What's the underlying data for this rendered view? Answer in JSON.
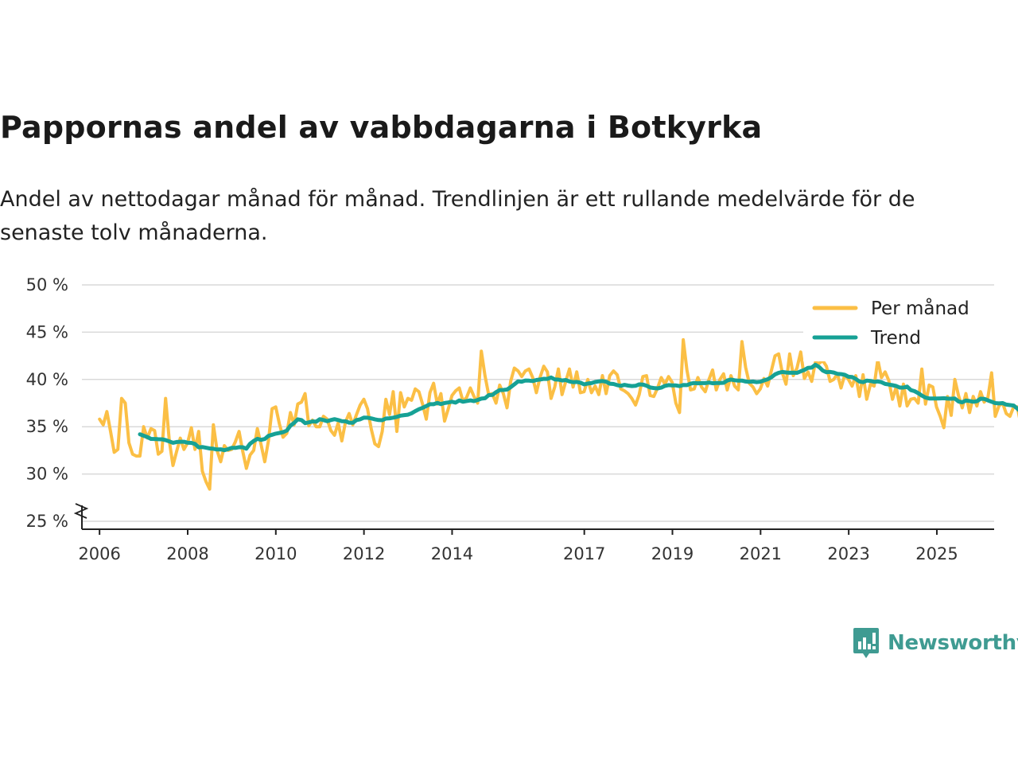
{
  "title": "Pappornas andel av vabbdagarna i Botkyrka",
  "subtitle": "Andel av nettodagar månad för månad. Trendlinjen är ett rullande medelvärde för de senaste tolv månaderna.",
  "brand": "Newsworthy",
  "colors": {
    "monthly": "#fbbf45",
    "trend": "#16a195",
    "grid": "#d9d9d9",
    "axis": "#222222",
    "brand": "#3f9b92"
  },
  "chart_data": {
    "type": "line",
    "title": "Pappornas andel av vabbdagarna i Botkyrka",
    "xlabel": "",
    "ylabel": "",
    "xlim": [
      2005.6,
      2026.3
    ],
    "ylim": [
      25,
      50
    ],
    "y_ticks": [
      25,
      30,
      35,
      40,
      45,
      50
    ],
    "y_tick_labels": [
      "25 %",
      "30 %",
      "35 %",
      "40 %",
      "45 %",
      "50 %"
    ],
    "x_ticks": [
      2006,
      2008,
      2010,
      2012,
      2014,
      2017,
      2019,
      2021,
      2023,
      2025
    ],
    "x_tick_labels": [
      "2006",
      "2008",
      "2010",
      "2012",
      "2014",
      "2017",
      "2019",
      "2021",
      "2023",
      "2025"
    ],
    "axis_break": true,
    "legend": {
      "position": "top-right",
      "entries": [
        "Per månad",
        "Trend"
      ]
    },
    "series": [
      {
        "name": "Per månad",
        "x_start": 2006.0,
        "step": 0.0833,
        "values": [
          35.8,
          35.2,
          36.6,
          34.5,
          32.3,
          32.6,
          38.0,
          37.5,
          33.3,
          32.1,
          31.9,
          31.9,
          35.0,
          33.8,
          34.8,
          34.6,
          32.1,
          32.4,
          38.0,
          33.5,
          30.9,
          32.4,
          33.8,
          32.6,
          33.3,
          34.9,
          32.6,
          34.5,
          30.3,
          29.2,
          28.4,
          35.2,
          32.5,
          31.3,
          33.0,
          32.5,
          32.6,
          33.4,
          34.5,
          32.4,
          30.6,
          32.0,
          32.5,
          34.8,
          33.1,
          31.3,
          33.5,
          36.9,
          37.1,
          35.3,
          33.9,
          34.3,
          36.5,
          35.2,
          37.4,
          37.6,
          38.5,
          35.1,
          35.7,
          35.0,
          35.0,
          36.1,
          35.8,
          34.6,
          34.1,
          35.4,
          33.5,
          35.5,
          36.4,
          35.2,
          36.3,
          37.3,
          37.9,
          36.9,
          34.8,
          33.2,
          32.9,
          34.5,
          37.9,
          36.3,
          38.7,
          34.5,
          38.6,
          37.1,
          38.0,
          37.8,
          39.0,
          38.7,
          37.4,
          35.8,
          38.6,
          39.6,
          37.4,
          38.5,
          35.6,
          36.9,
          38.3,
          38.8,
          39.1,
          37.7,
          38.1,
          39.1,
          38.2,
          37.5,
          43.0,
          40.4,
          38.4,
          38.5,
          37.5,
          39.4,
          38.5,
          37.0,
          39.8,
          41.2,
          40.9,
          40.3,
          40.9,
          41.1,
          40.2,
          38.6,
          40.2,
          41.4,
          40.8,
          38.0,
          39.2,
          41.1,
          38.4,
          39.8,
          41.1,
          39.2,
          40.8,
          38.6,
          38.7,
          40.0,
          38.6,
          39.3,
          38.4,
          40.4,
          38.5,
          40.4,
          40.9,
          40.5,
          39.0,
          38.8,
          38.5,
          38.0,
          37.3,
          38.4,
          40.3,
          40.4,
          38.3,
          38.2,
          39.1,
          40.2,
          39.5,
          40.3,
          39.7,
          37.5,
          36.5,
          44.2,
          41.0,
          38.9,
          39.0,
          40.2,
          39.2,
          38.7,
          40.0,
          41.0,
          38.9,
          40.0,
          40.6,
          38.9,
          40.4,
          39.3,
          38.9,
          44.0,
          41.3,
          39.6,
          39.2,
          38.5,
          39.0,
          40.1,
          39.3,
          40.9,
          42.5,
          42.7,
          40.7,
          39.5,
          42.7,
          40.4,
          41.2,
          42.9,
          40.1,
          40.8,
          39.8,
          41.8,
          41.7,
          42.0,
          41.4,
          39.8,
          40.0,
          40.6,
          39.1,
          40.5,
          40.0,
          39.3,
          40.4,
          38.2,
          40.5,
          37.9,
          39.5,
          39.3,
          42.1,
          40.2,
          40.8,
          39.9,
          37.9,
          39.2,
          37.2,
          39.5,
          37.2,
          37.9,
          38.0,
          37.5,
          41.1,
          37.4,
          39.4,
          39.2,
          37.1,
          36.1,
          34.9,
          38.2,
          36.2,
          40.0,
          38.3,
          37.0,
          38.5,
          36.5,
          38.2,
          37.2,
          38.7,
          37.6,
          38.1,
          40.7,
          36.1,
          37.2,
          37.5,
          36.4,
          36.1,
          37.1,
          37.1,
          35.2,
          37.8,
          37.5,
          37.3,
          38.0,
          34.9,
          36.6,
          36.4,
          36.4,
          36.2,
          36.2
        ]
      },
      {
        "name": "Trend",
        "x_start": 2006.9167,
        "step": 0.0833,
        "values": [
          34.2,
          34.05,
          33.91,
          33.71,
          33.7,
          33.68,
          33.67,
          33.59,
          33.44,
          33.3,
          33.38,
          33.41,
          33.41,
          33.31,
          33.29,
          33.18,
          32.82,
          32.85,
          32.78,
          32.7,
          32.67,
          32.59,
          32.61,
          32.52,
          32.63,
          32.77,
          32.76,
          32.84,
          32.83,
          32.68,
          33.2,
          33.49,
          33.72,
          33.61,
          33.7,
          34.03,
          34.15,
          34.27,
          34.34,
          34.43,
          34.6,
          35.11,
          35.4,
          35.78,
          35.71,
          35.38,
          35.46,
          35.56,
          35.53,
          35.8,
          35.71,
          35.59,
          35.71,
          35.8,
          35.71,
          35.58,
          35.57,
          35.43,
          35.42,
          35.71,
          35.78,
          35.96,
          35.95,
          35.88,
          35.78,
          35.71,
          35.69,
          35.87,
          35.89,
          35.96,
          36.04,
          36.17,
          36.23,
          36.27,
          36.42,
          36.65,
          36.85,
          37.0,
          37.19,
          37.38,
          37.38,
          37.52,
          37.4,
          37.51,
          37.57,
          37.64,
          37.55,
          37.79,
          37.64,
          37.72,
          37.79,
          37.71,
          37.83,
          37.97,
          38.01,
          38.34,
          38.36,
          38.65,
          38.88,
          38.89,
          38.93,
          39.18,
          39.49,
          39.8,
          39.76,
          39.89,
          39.87,
          39.83,
          39.94,
          39.99,
          40.07,
          40.06,
          40.21,
          40.01,
          39.98,
          39.89,
          39.94,
          39.79,
          39.71,
          39.74,
          39.66,
          39.48,
          39.57,
          39.61,
          39.73,
          39.8,
          39.83,
          39.76,
          39.55,
          39.52,
          39.4,
          39.33,
          39.43,
          39.35,
          39.3,
          39.33,
          39.48,
          39.46,
          39.34,
          39.15,
          39.09,
          39.06,
          39.13,
          39.32,
          39.4,
          39.37,
          39.37,
          39.3,
          39.41,
          39.4,
          39.55,
          39.63,
          39.6,
          39.61,
          39.61,
          39.67,
          39.6,
          39.63,
          39.62,
          39.65,
          39.89,
          39.99,
          39.92,
          39.87,
          39.88,
          39.78,
          39.76,
          39.78,
          39.71,
          39.76,
          39.9,
          40.02,
          40.23,
          40.54,
          40.71,
          40.79,
          40.74,
          40.71,
          40.72,
          40.7,
          40.86,
          41.01,
          41.23,
          41.25,
          41.56,
          41.32,
          40.94,
          40.77,
          40.8,
          40.73,
          40.6,
          40.56,
          40.49,
          40.29,
          40.26,
          40.06,
          39.78,
          39.71,
          39.88,
          39.84,
          39.76,
          39.79,
          39.71,
          39.53,
          39.46,
          39.39,
          39.31,
          39.14,
          39.14,
          39.24,
          38.87,
          38.76,
          38.55,
          38.29,
          38.08,
          37.99,
          37.98,
          37.99,
          38.0,
          38.01,
          37.97,
          37.96,
          37.98,
          37.67,
          37.58,
          37.77,
          37.72,
          37.64,
          37.69,
          37.96,
          37.95,
          37.79,
          37.64,
          37.5,
          37.47,
          37.5,
          37.34,
          37.29,
          37.24,
          36.93,
          36.55,
          36.35,
          36.38,
          36.5
        ]
      }
    ]
  }
}
